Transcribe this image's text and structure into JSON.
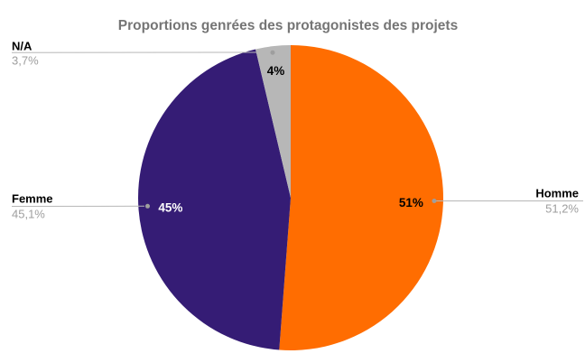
{
  "page": {
    "background_color": "#ffffff"
  },
  "chart_data": {
    "type": "pie",
    "title": "Proportions genrées des protagonistes des projets",
    "title_color": "#757575",
    "categories": [
      "Homme",
      "Femme",
      "N/A"
    ],
    "values": [
      51.2,
      45.1,
      3.7
    ],
    "colors": [
      "#ff6d01",
      "#351c75",
      "#b7b7b7"
    ],
    "slice_labels": [
      "51%",
      "45%",
      "4%"
    ],
    "slice_label_colors": [
      "#000000",
      "#ffffff",
      "#000000"
    ],
    "start_angle_deg": 0,
    "direction": "clockwise",
    "legend_position": "callout-labels",
    "callouts": [
      {
        "name": "N/A",
        "value": "3,7%"
      },
      {
        "name": "Femme",
        "value": "45,1%"
      },
      {
        "name": "Homme",
        "value": "51,2%"
      }
    ],
    "callout_name_color": "#000000",
    "callout_value_color": "#9e9e9e",
    "callout_line_color": "#b7b7b7"
  }
}
